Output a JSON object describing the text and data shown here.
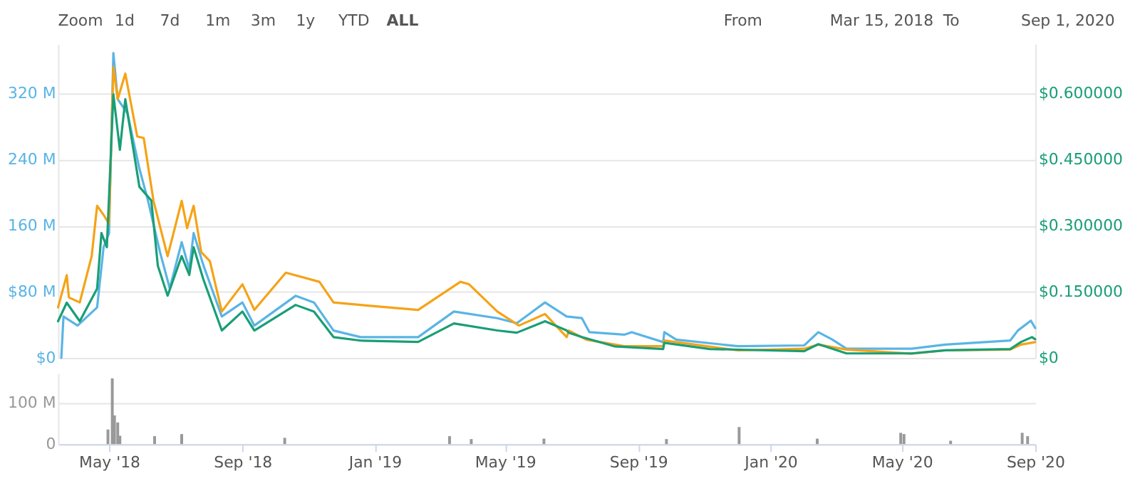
{
  "chart_data": [
    {
      "type": "line",
      "annotations": [
        "Zoom",
        "1d",
        "7d",
        "1m",
        "3m",
        "1y",
        "YTD",
        "ALL",
        "From",
        "Mar 15, 2018",
        "To",
        "Sep 1, 2020"
      ],
      "xlim": [
        "2018-03-15",
        "2020-09-01"
      ],
      "ylim": [
        0,
        380
      ],
      "yticks": [
        {
          "value": 0,
          "label": "$0"
        },
        {
          "value": 80,
          "label": "$80 M"
        },
        {
          "value": 160,
          "label": "160 M"
        },
        {
          "value": 240,
          "label": "240 M"
        },
        {
          "value": 320,
          "label": "320 M"
        }
      ],
      "y2lim": [
        0,
        0.7125
      ],
      "y2ticks": [
        {
          "value": 0,
          "label": "$0"
        },
        {
          "value": 0.15,
          "label": "$0.150000"
        },
        {
          "value": 0.3,
          "label": "$0.300000"
        },
        {
          "value": 0.45,
          "label": "$0.450000"
        },
        {
          "value": 0.6,
          "label": "$0.600000"
        }
      ],
      "grid": "y",
      "tick_labels": "y",
      "series": [
        {
          "color": "#5ab4e5",
          "x": [
            "2018-03-18",
            "2018-03-20",
            "2018-04-02",
            "2018-04-20",
            "2018-04-26",
            "2018-05-01",
            "2018-05-05",
            "2018-05-09",
            "2018-05-18",
            "2018-05-29",
            "2018-06-06",
            "2018-06-17",
            "2018-06-26",
            "2018-07-07",
            "2018-07-14",
            "2018-07-18",
            "2018-07-27",
            "2018-08-13",
            "2018-09-01",
            "2018-09-12",
            "2018-10-20",
            "2018-11-06",
            "2018-11-24",
            "2018-12-19",
            "2019-02-10",
            "2019-03-15",
            "2019-04-24",
            "2019-05-12",
            "2019-06-07",
            "2019-06-27",
            "2019-07-11",
            "2019-07-18",
            "2019-08-19",
            "2019-08-26",
            "2019-09-24",
            "2019-09-25",
            "2019-10-06",
            "2019-12-02",
            "2020-02-01",
            "2020-02-14",
            "2020-02-27",
            "2020-03-11",
            "2020-05-10",
            "2020-06-10",
            "2020-08-09",
            "2020-08-16",
            "2020-08-28",
            "2020-09-01"
          ],
          "values": [
            0,
            50,
            39,
            61,
            134,
            151,
            369,
            313,
            296,
            229,
            190,
            128,
            84,
            140,
            107,
            151,
            112,
            50,
            67,
            39,
            75,
            67,
            33,
            25,
            25,
            56,
            48,
            42,
            67,
            50,
            48,
            31,
            28,
            31,
            19,
            31,
            22,
            14,
            15,
            31,
            22,
            11,
            11,
            16,
            21,
            33,
            45,
            36
          ]
        },
        {
          "color": "#f5a316",
          "x": [
            "2018-03-15",
            "2018-03-23",
            "2018-03-25",
            "2018-04-04",
            "2018-04-15",
            "2018-04-20",
            "2018-04-26",
            "2018-05-01",
            "2018-05-05",
            "2018-05-09",
            "2018-05-16",
            "2018-05-27",
            "2018-06-02",
            "2018-06-11",
            "2018-06-24",
            "2018-07-07",
            "2018-07-12",
            "2018-07-18",
            "2018-07-25",
            "2018-08-02",
            "2018-08-13",
            "2018-09-01",
            "2018-09-12",
            "2018-10-11",
            "2018-11-11",
            "2018-11-24",
            "2018-12-19",
            "2019-02-10",
            "2019-03-21",
            "2019-03-29",
            "2019-04-24",
            "2019-05-14",
            "2019-06-07",
            "2019-06-27",
            "2019-06-29",
            "2019-07-15",
            "2019-08-19",
            "2019-09-24",
            "2019-09-25",
            "2019-12-02",
            "2020-02-01",
            "2020-02-14",
            "2020-03-11",
            "2020-05-10",
            "2020-06-10",
            "2020-08-09",
            "2020-08-19",
            "2020-09-01"
          ],
          "values": [
            61,
            100,
            73,
            67,
            123,
            184,
            173,
            162,
            352,
            313,
            344,
            268,
            266,
            190,
            123,
            190,
            157,
            184,
            128,
            117,
            56,
            89,
            58,
            103,
            92,
            67,
            64,
            58,
            92,
            89,
            56,
            39,
            53,
            25,
            33,
            22,
            14,
            14,
            21,
            9,
            11,
            16,
            10,
            5,
            9,
            10,
            16,
            19
          ]
        },
        {
          "color": "#1a9e77",
          "axis": "y2",
          "x": [
            "2018-03-15",
            "2018-03-23",
            "2018-04-04",
            "2018-04-20",
            "2018-04-24",
            "2018-04-29",
            "2018-05-05",
            "2018-05-11",
            "2018-05-16",
            "2018-05-29",
            "2018-06-09",
            "2018-06-15",
            "2018-06-24",
            "2018-07-07",
            "2018-07-14",
            "2018-07-18",
            "2018-07-27",
            "2018-08-13",
            "2018-09-01",
            "2018-09-12",
            "2018-10-20",
            "2018-11-06",
            "2018-11-24",
            "2018-12-19",
            "2019-02-10",
            "2019-03-15",
            "2019-04-24",
            "2019-05-12",
            "2019-06-07",
            "2019-06-27",
            "2019-06-29",
            "2019-07-11",
            "2019-08-10",
            "2019-09-24",
            "2019-09-25",
            "2019-11-06",
            "2020-02-01",
            "2020-02-14",
            "2020-03-11",
            "2020-05-10",
            "2020-06-10",
            "2020-08-09",
            "2020-08-19",
            "2020-08-29",
            "2020-09-01"
          ],
          "values": [
            0.083,
            0.125,
            0.083,
            0.157,
            0.283,
            0.251,
            0.598,
            0.472,
            0.587,
            0.388,
            0.357,
            0.209,
            0.141,
            0.231,
            0.188,
            0.251,
            0.178,
            0.062,
            0.105,
            0.062,
            0.12,
            0.105,
            0.047,
            0.039,
            0.036,
            0.078,
            0.062,
            0.057,
            0.083,
            0.062,
            0.057,
            0.047,
            0.026,
            0.02,
            0.034,
            0.02,
            0.015,
            0.031,
            0.01,
            0.01,
            0.017,
            0.02,
            0.036,
            0.047,
            0.042
          ]
        }
      ]
    },
    {
      "type": "bar",
      "xlim": [
        "2018-03-15",
        "2020-09-01"
      ],
      "xticks": [
        {
          "value": "2018-05-01",
          "label": "May '18"
        },
        {
          "value": "2018-09-01",
          "label": "Sep '18"
        },
        {
          "value": "2019-01-01",
          "label": "Jan '19"
        },
        {
          "value": "2019-05-01",
          "label": "May '19"
        },
        {
          "value": "2019-09-01",
          "label": "Sep '19"
        },
        {
          "value": "2020-01-01",
          "label": "Jan '20"
        },
        {
          "value": "2020-05-01",
          "label": "May '20"
        },
        {
          "value": "2020-09-01",
          "label": "Sep '20"
        }
      ],
      "ylim": [
        0,
        170
      ],
      "yticks": [
        0,
        {
          "value": 100,
          "label": "100 M"
        }
      ],
      "grid": "y",
      "x": [
        "2018-04-30",
        "2018-05-04",
        "2018-05-06",
        "2018-05-09",
        "2018-05-11",
        "2018-06-12",
        "2018-07-07",
        "2018-10-10",
        "2019-03-11",
        "2019-03-31",
        "2019-06-06",
        "2019-09-27",
        "2019-12-03",
        "2020-02-13",
        "2020-04-30",
        "2020-05-03",
        "2020-06-15",
        "2020-08-20",
        "2020-08-25"
      ],
      "series": [
        {
          "color": "#999999",
          "values": [
            35,
            158,
            69,
            52,
            20,
            19,
            24,
            15,
            19,
            12,
            13,
            12,
            41,
            13,
            27,
            24,
            8,
            27,
            19
          ]
        }
      ]
    }
  ]
}
